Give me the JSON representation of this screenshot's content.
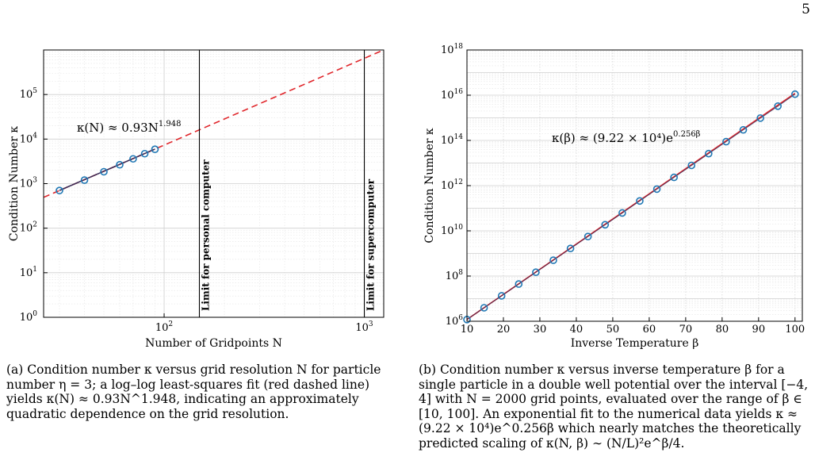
{
  "page_number": "5",
  "figure_a": {
    "caption": "(a) Condition number κ versus grid resolution N for particle number η = 3; a log–log least-squares fit (red dashed line) yields κ(N) ≈ 0.93N^1.948, indicating an approximately quadratic dependence on the grid resolution.",
    "annotation": "κ(N) ≈ 0.93N",
    "annotation_exponent": "1.948"
  },
  "figure_b": {
    "caption": "(b) Condition number κ versus inverse temperature β for a single particle in a double well potential over the interval [−4, 4] with N = 2000 grid points, evaluated over the range of β ∈ [10, 100]. An exponential fit to the numerical data yields κ ≈ (9.22 × 10⁴)e^0.256β which nearly matches the theoretically predicted scaling of κ(N, β) ∼ (N/L)²e^β/4.",
    "annotation": "κ(β) ≈ (9.22 × 10⁴)e",
    "annotation_exponent": "0.256β"
  },
  "chart_data": [
    {
      "type": "scatter",
      "xlabel": "Number of Gridpoints N",
      "ylabel": "Condition Number κ",
      "xscale": "log",
      "yscale": "log",
      "xlim": [
        25,
        1250
      ],
      "ylim": [
        1,
        1000000
      ],
      "xticks": [
        100,
        1000
      ],
      "xtick_labels": [
        "10",
        "10"
      ],
      "xtick_exps": [
        "2",
        "3"
      ],
      "yticks": [
        1,
        10,
        100,
        1000,
        10000,
        100000
      ],
      "ytick_labels": [
        "10",
        "10",
        "10",
        "10",
        "10",
        "10"
      ],
      "ytick_exps": [
        "0",
        "1",
        "2",
        "3",
        "4",
        "5"
      ],
      "grid": true,
      "series": [
        {
          "x": [
            30,
            40,
            50,
            60,
            70,
            80,
            90
          ],
          "y": [
            700,
            1200,
            1850,
            2650,
            3600,
            4700,
            5900
          ]
        }
      ],
      "fit": {
        "style": "dashed",
        "color": "#e0262b",
        "coef": 0.93,
        "exp": 1.948,
        "x_range": [
          25,
          1250
        ]
      },
      "vlines": [
        {
          "x": 150,
          "label": "Limit for personal computer"
        },
        {
          "x": 1000,
          "label": "Limit for supercomputer"
        }
      ],
      "marker_color": "#1f77b4"
    },
    {
      "type": "scatter",
      "xlabel": "Inverse Temperature β",
      "ylabel": "Condition Number κ",
      "xscale": "linear",
      "yscale": "log",
      "xlim": [
        10,
        102
      ],
      "ylim": [
        1000000,
        1000000000000000000
      ],
      "xticks": [
        10,
        20,
        30,
        40,
        50,
        60,
        70,
        80,
        90,
        100
      ],
      "xtick_labels": [
        "10",
        "20",
        "30",
        "40",
        "50",
        "60",
        "70",
        "80",
        "90",
        "100"
      ],
      "yticks": [
        1000000,
        100000000,
        10000000000,
        1000000000000,
        100000000000000,
        10000000000000000,
        1000000000000000000
      ],
      "ytick_labels": [
        "10",
        "10",
        "10",
        "10",
        "10",
        "10",
        "10"
      ],
      "ytick_exps": [
        "6",
        "8",
        "10",
        "12",
        "14",
        "16",
        "18"
      ],
      "grid": true,
      "series": [
        {
          "x": [
            10,
            14.7,
            19.5,
            24.2,
            28.9,
            33.7,
            38.4,
            43.2,
            47.9,
            52.6,
            57.4,
            62.1,
            66.8,
            71.6,
            76.3,
            81.1,
            85.8,
            90.5,
            95.3,
            100
          ],
          "y": [
            1190000,
            3950000,
            13300000,
            44300000,
            147000000,
            500000000,
            1660000000,
            5600000000,
            18600000000,
            61800000000,
            210000000000,
            700000000000,
            2320000000000,
            7850000000000,
            26000000000000,
            88000000000000,
            292000000000000,
            970000000000000,
            3280000000000000,
            11100000000000000
          ]
        }
      ],
      "fit": {
        "style": "solid",
        "color": "#e0262b",
        "coef": 92200,
        "rate": 0.256,
        "x_range": [
          10,
          100
        ]
      },
      "marker_color": "#1f77b4"
    }
  ]
}
